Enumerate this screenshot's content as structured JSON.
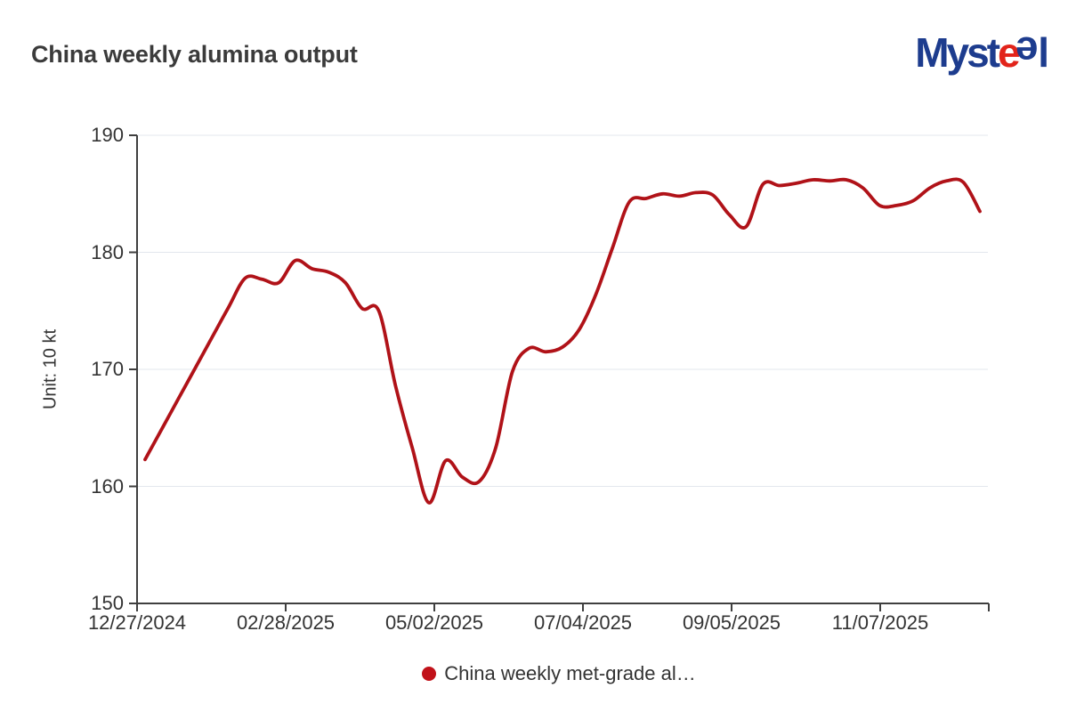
{
  "header": {
    "title": "China weekly alumina output",
    "logo": {
      "part1": "Myst",
      "part2": "e",
      "part3": "e",
      "part4": "l",
      "blue_color": "#1d3c8e",
      "red_color": "#e2241b"
    }
  },
  "chart": {
    "unit_label": "Unit: 10 kt",
    "legend": {
      "label": "China weekly met-grade al…",
      "marker_color": "#c11119"
    }
  },
  "chart_data": {
    "type": "line",
    "title": "China weekly alumina output",
    "xlabel": "",
    "ylabel": "Unit: 10 kt",
    "ylim": [
      150,
      190
    ],
    "yticks": [
      150,
      160,
      170,
      180,
      190
    ],
    "xtick_labels": [
      "12/27/2024",
      "02/28/2025",
      "05/02/2025",
      "07/04/2025",
      "09/05/2025",
      "11/07/2025"
    ],
    "grid": true,
    "legend_position": "bottom",
    "line_color": "#b01218",
    "grid_color": "#e3e7ed",
    "axis_color": "#3f3f3f",
    "series": [
      {
        "name": "China weekly met-grade al…",
        "color": "#b01218",
        "x": [
          "12/27/2024",
          "01/03/2025",
          "01/10/2025",
          "01/17/2025",
          "01/24/2025",
          "01/31/2025",
          "02/07/2025",
          "02/14/2025",
          "02/21/2025",
          "02/28/2025",
          "03/07/2025",
          "03/14/2025",
          "03/21/2025",
          "03/28/2025",
          "04/04/2025",
          "04/11/2025",
          "04/18/2025",
          "04/25/2025",
          "05/02/2025",
          "05/09/2025",
          "05/16/2025",
          "05/23/2025",
          "05/30/2025",
          "06/06/2025",
          "06/13/2025",
          "06/20/2025",
          "06/27/2025",
          "07/04/2025",
          "07/11/2025",
          "07/18/2025",
          "07/25/2025",
          "08/01/2025",
          "08/08/2025",
          "08/15/2025",
          "08/22/2025",
          "08/29/2025",
          "09/05/2025",
          "09/12/2025",
          "09/19/2025",
          "09/26/2025",
          "10/03/2025",
          "10/10/2025",
          "10/17/2025",
          "10/24/2025",
          "10/31/2025",
          "11/07/2025",
          "11/14/2025",
          "11/21/2025",
          "11/28/2025",
          "12/05/2025",
          "12/12/2025"
        ],
        "values": [
          162.3,
          164.9,
          167.5,
          170.1,
          172.7,
          175.3,
          177.8,
          177.7,
          177.4,
          179.3,
          178.6,
          178.3,
          177.4,
          175.2,
          175.0,
          168.6,
          163.3,
          158.6,
          162.2,
          160.8,
          160.4,
          163.3,
          169.8,
          171.8,
          171.5,
          171.9,
          173.4,
          176.4,
          180.4,
          184.3,
          184.6,
          185.0,
          184.8,
          185.1,
          184.9,
          183.2,
          182.2,
          185.8,
          185.7,
          185.9,
          186.2,
          186.1,
          186.2,
          185.5,
          184.0,
          184.0,
          184.4,
          185.5,
          186.1,
          186.0,
          183.5
        ]
      }
    ]
  }
}
